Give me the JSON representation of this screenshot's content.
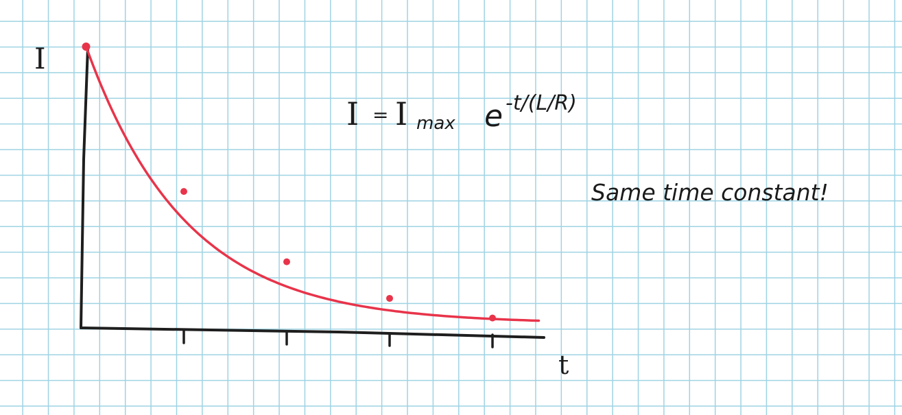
{
  "chart_data": {
    "type": "line",
    "ylabel": "I",
    "xlabel": "t",
    "equation": {
      "lhs": "I",
      "eq": "=",
      "imax": "I",
      "imax_sub": "max",
      "base": "e",
      "exponent": "-t/(L/R)"
    },
    "annotation": "Same time constant!",
    "x_ticks": [
      1,
      2,
      3,
      4
    ],
    "xlim": [
      0,
      4.45
    ],
    "ylim": [
      0,
      1
    ],
    "curve": {
      "function": "exp_decay",
      "amplitude": 1,
      "time_constant": 0.97,
      "x_start": 0.05,
      "x_end": 4.45
    },
    "series": [
      {
        "values": [
          {
            "x": 0.05,
            "y": 1.0
          },
          {
            "x": 1.0,
            "y": 0.485
          },
          {
            "x": 2.0,
            "y": 0.235
          },
          {
            "x": 3.0,
            "y": 0.105
          },
          {
            "x": 4.0,
            "y": 0.035
          }
        ]
      }
    ],
    "colors": {
      "curve": "#e8344a",
      "axes": "#1e1e1e",
      "grid": "#9ed3e3"
    },
    "grid": true
  }
}
